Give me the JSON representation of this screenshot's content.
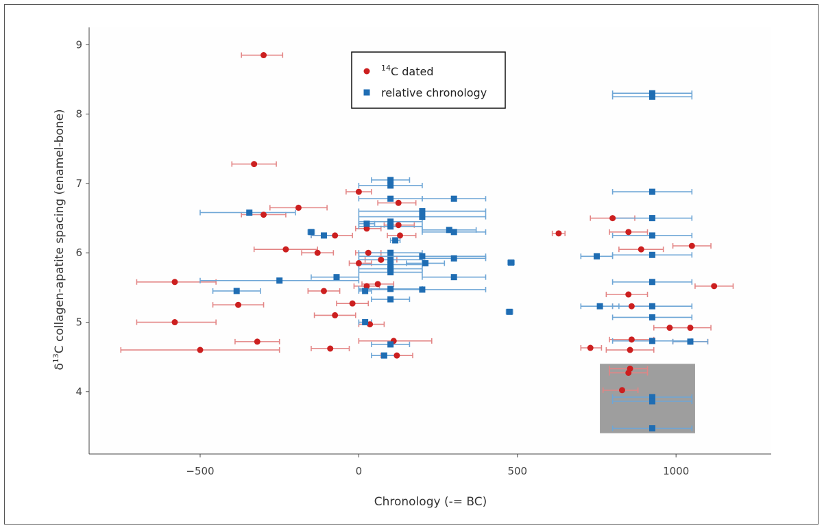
{
  "chart_data": {
    "type": "scatter",
    "xlabel": "Chronology (-= BC)",
    "ylabel_prefix": "δ",
    "ylabel_sup": "13",
    "ylabel_rest": "C collagen-apatite spacing (enamel-bone)",
    "xlim": [
      -850,
      1300
    ],
    "ylim": [
      3.1,
      9.25
    ],
    "xticks": [
      -500,
      0,
      500,
      1000
    ],
    "xtick_labels": [
      "−500",
      "0",
      "500",
      "1000"
    ],
    "yticks": [
      4,
      5,
      6,
      7,
      8,
      9
    ],
    "ytick_labels": [
      "4",
      "5",
      "6",
      "7",
      "8",
      "9"
    ],
    "grid": false,
    "legend_position": "top-center",
    "highlight_box": {
      "x": [
        760,
        1060
      ],
      "y": [
        3.4,
        4.4
      ],
      "color": "#9e9e9e"
    },
    "series": [
      {
        "name_sup": "14",
        "name_rest": "C dated",
        "marker": "circle",
        "color": "#cc1f1f",
        "errcolor": "#e38585",
        "points": [
          {
            "x": -300,
            "y": 8.85,
            "xmin": -370,
            "xmax": -240
          },
          {
            "x": -330,
            "y": 7.28,
            "xmin": -400,
            "xmax": -260
          },
          {
            "x": -190,
            "y": 6.65,
            "xmin": -280,
            "xmax": -100
          },
          {
            "x": -300,
            "y": 6.55,
            "xmin": -370,
            "xmax": -230
          },
          {
            "x": -75,
            "y": 6.25,
            "xmin": -150,
            "xmax": -20
          },
          {
            "x": -230,
            "y": 6.05,
            "xmin": -330,
            "xmax": -130
          },
          {
            "x": -130,
            "y": 6.0,
            "xmin": -180,
            "xmax": -80
          },
          {
            "x": 0,
            "y": 6.88,
            "xmin": -40,
            "xmax": 40
          },
          {
            "x": 125,
            "y": 6.72,
            "xmin": 60,
            "xmax": 180
          },
          {
            "x": 125,
            "y": 6.4,
            "xmin": 80,
            "xmax": 175
          },
          {
            "x": 25,
            "y": 6.35,
            "xmin": -10,
            "xmax": 70
          },
          {
            "x": 130,
            "y": 6.25,
            "xmin": 90,
            "xmax": 180
          },
          {
            "x": 30,
            "y": 6.0,
            "xmin": -10,
            "xmax": 70
          },
          {
            "x": 70,
            "y": 5.9,
            "xmin": 20,
            "xmax": 120
          },
          {
            "x": 0,
            "y": 5.85,
            "xmin": -30,
            "xmax": 40
          },
          {
            "x": 60,
            "y": 5.55,
            "xmin": 10,
            "xmax": 110
          },
          {
            "x": 25,
            "y": 5.52,
            "xmin": -15,
            "xmax": 65
          },
          {
            "x": -580,
            "y": 5.58,
            "xmin": -700,
            "xmax": -450
          },
          {
            "x": -110,
            "y": 5.45,
            "xmin": -160,
            "xmax": -60
          },
          {
            "x": -380,
            "y": 5.25,
            "xmin": -460,
            "xmax": -300
          },
          {
            "x": -20,
            "y": 5.27,
            "xmin": -70,
            "xmax": 30
          },
          {
            "x": -75,
            "y": 5.1,
            "xmin": -140,
            "xmax": -10
          },
          {
            "x": 35,
            "y": 4.97,
            "xmin": 0,
            "xmax": 80
          },
          {
            "x": -580,
            "y": 5.0,
            "xmin": -700,
            "xmax": -450
          },
          {
            "x": -320,
            "y": 4.72,
            "xmin": -390,
            "xmax": -250
          },
          {
            "x": -500,
            "y": 4.6,
            "xmin": -750,
            "xmax": -250
          },
          {
            "x": -90,
            "y": 4.62,
            "xmin": -150,
            "xmax": -30
          },
          {
            "x": 110,
            "y": 4.73,
            "xmin": 0,
            "xmax": 230
          },
          {
            "x": 120,
            "y": 4.52,
            "xmin": 70,
            "xmax": 170
          },
          {
            "x": 630,
            "y": 6.28,
            "xmin": 610,
            "xmax": 650
          },
          {
            "x": 800,
            "y": 6.5,
            "xmin": 730,
            "xmax": 870
          },
          {
            "x": 850,
            "y": 6.3,
            "xmin": 790,
            "xmax": 910
          },
          {
            "x": 890,
            "y": 6.05,
            "xmin": 820,
            "xmax": 960
          },
          {
            "x": 1050,
            "y": 6.1,
            "xmin": 990,
            "xmax": 1110
          },
          {
            "x": 1120,
            "y": 5.52,
            "xmin": 1060,
            "xmax": 1180
          },
          {
            "x": 850,
            "y": 5.4,
            "xmin": 780,
            "xmax": 910
          },
          {
            "x": 860,
            "y": 5.23,
            "xmin": 800,
            "xmax": 920
          },
          {
            "x": 980,
            "y": 4.92,
            "xmin": 930,
            "xmax": 1040
          },
          {
            "x": 1045,
            "y": 4.92,
            "xmin": 980,
            "xmax": 1110
          },
          {
            "x": 860,
            "y": 4.75,
            "xmin": 790,
            "xmax": 930
          },
          {
            "x": 1045,
            "y": 4.72,
            "xmin": 990,
            "xmax": 1100
          },
          {
            "x": 730,
            "y": 4.63,
            "xmin": 700,
            "xmax": 765
          },
          {
            "x": 855,
            "y": 4.6,
            "xmin": 780,
            "xmax": 930
          },
          {
            "x": 855,
            "y": 4.33,
            "xmin": 790,
            "xmax": 910
          },
          {
            "x": 850,
            "y": 4.27,
            "xmin": 790,
            "xmax": 910
          },
          {
            "x": 830,
            "y": 4.02,
            "xmin": 770,
            "xmax": 880
          }
        ]
      },
      {
        "name": "relative chronology",
        "marker": "square",
        "color": "#1f6db3",
        "errcolor": "#6ea6d6",
        "points": [
          {
            "x": 925,
            "y": 8.3,
            "xmin": 800,
            "xmax": 1050
          },
          {
            "x": 925,
            "y": 8.25,
            "xmin": 800,
            "xmax": 1050
          },
          {
            "x": 100,
            "y": 7.05,
            "xmin": 40,
            "xmax": 160
          },
          {
            "x": 100,
            "y": 6.97,
            "xmin": 0,
            "xmax": 200
          },
          {
            "x": 925,
            "y": 6.88,
            "xmin": 800,
            "xmax": 1050
          },
          {
            "x": 100,
            "y": 6.78,
            "xmin": 0,
            "xmax": 200
          },
          {
            "x": 300,
            "y": 6.78,
            "xmin": 200,
            "xmax": 400
          },
          {
            "x": 200,
            "y": 6.6,
            "xmin": 0,
            "xmax": 400
          },
          {
            "x": 200,
            "y": 6.52,
            "xmin": 0,
            "xmax": 400
          },
          {
            "x": -345,
            "y": 6.58,
            "xmin": -500,
            "xmax": -200
          },
          {
            "x": 925,
            "y": 6.5,
            "xmin": 800,
            "xmax": 1050
          },
          {
            "x": 100,
            "y": 6.45,
            "xmin": 0,
            "xmax": 200
          },
          {
            "x": 25,
            "y": 6.42,
            "xmin": 0,
            "xmax": 50
          },
          {
            "x": 100,
            "y": 6.38,
            "xmin": 0,
            "xmax": 200
          },
          {
            "x": -150,
            "y": 6.3,
            "xmin": -160,
            "xmax": -140
          },
          {
            "x": 285,
            "y": 6.33,
            "xmin": 200,
            "xmax": 370
          },
          {
            "x": 300,
            "y": 6.3,
            "xmin": 200,
            "xmax": 400
          },
          {
            "x": -110,
            "y": 6.25,
            "xmin": -150,
            "xmax": -70
          },
          {
            "x": 925,
            "y": 6.25,
            "xmin": 800,
            "xmax": 1050
          },
          {
            "x": 115,
            "y": 6.18,
            "xmin": 100,
            "xmax": 130
          },
          {
            "x": 100,
            "y": 6.0,
            "xmin": 0,
            "xmax": 200
          },
          {
            "x": 200,
            "y": 5.95,
            "xmin": 0,
            "xmax": 400
          },
          {
            "x": 300,
            "y": 5.92,
            "xmin": 200,
            "xmax": 400
          },
          {
            "x": 750,
            "y": 5.95,
            "xmin": 700,
            "xmax": 800
          },
          {
            "x": 925,
            "y": 5.97,
            "xmin": 800,
            "xmax": 1050
          },
          {
            "x": 100,
            "y": 5.9,
            "xmin": 0,
            "xmax": 200
          },
          {
            "x": 210,
            "y": 5.85,
            "xmin": 150,
            "xmax": 270
          },
          {
            "x": 100,
            "y": 5.83,
            "xmin": 0,
            "xmax": 200
          },
          {
            "x": 480,
            "y": 5.86,
            "xmin": 470,
            "xmax": 490
          },
          {
            "x": 100,
            "y": 5.77,
            "xmin": 0,
            "xmax": 200
          },
          {
            "x": 100,
            "y": 5.72,
            "xmin": 0,
            "xmax": 200
          },
          {
            "x": -70,
            "y": 5.65,
            "xmin": -150,
            "xmax": 0
          },
          {
            "x": 300,
            "y": 5.65,
            "xmin": 200,
            "xmax": 400
          },
          {
            "x": -250,
            "y": 5.6,
            "xmin": -500,
            "xmax": 0
          },
          {
            "x": 925,
            "y": 5.58,
            "xmin": 800,
            "xmax": 1050
          },
          {
            "x": 100,
            "y": 5.48,
            "xmin": 0,
            "xmax": 200
          },
          {
            "x": 200,
            "y": 5.47,
            "xmin": 0,
            "xmax": 400
          },
          {
            "x": 20,
            "y": 5.45,
            "xmin": 0,
            "xmax": 40
          },
          {
            "x": -385,
            "y": 5.45,
            "xmin": -460,
            "xmax": -310
          },
          {
            "x": 100,
            "y": 5.33,
            "xmin": 40,
            "xmax": 160
          },
          {
            "x": 760,
            "y": 5.23,
            "xmin": 700,
            "xmax": 820
          },
          {
            "x": 925,
            "y": 5.23,
            "xmin": 800,
            "xmax": 1050
          },
          {
            "x": 475,
            "y": 5.15,
            "xmin": 465,
            "xmax": 485
          },
          {
            "x": 925,
            "y": 5.07,
            "xmin": 800,
            "xmax": 1050
          },
          {
            "x": 20,
            "y": 5.0,
            "xmin": 0,
            "xmax": 40
          },
          {
            "x": 925,
            "y": 4.73,
            "xmin": 800,
            "xmax": 1050
          },
          {
            "x": 1045,
            "y": 4.72,
            "xmin": 990,
            "xmax": 1100
          },
          {
            "x": 100,
            "y": 4.68,
            "xmin": 40,
            "xmax": 160
          },
          {
            "x": 80,
            "y": 4.52,
            "xmin": 40,
            "xmax": 120
          },
          {
            "x": 925,
            "y": 3.92,
            "xmin": 800,
            "xmax": 1050
          },
          {
            "x": 925,
            "y": 3.86,
            "xmin": 800,
            "xmax": 1050
          },
          {
            "x": 925,
            "y": 3.47,
            "xmin": 800,
            "xmax": 1050
          }
        ]
      }
    ]
  }
}
